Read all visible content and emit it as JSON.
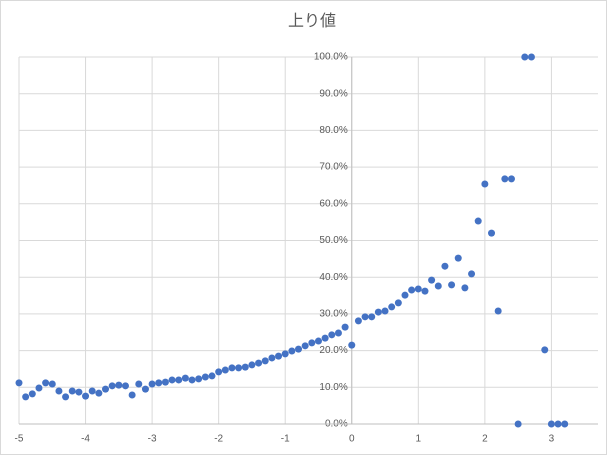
{
  "chart_data": {
    "type": "scatter",
    "title": "上り値",
    "x": [
      -5.0,
      -4.9,
      -4.8,
      -4.7,
      -4.6,
      -4.5,
      -4.4,
      -4.3,
      -4.2,
      -4.1,
      -4.0,
      -3.9,
      -3.8,
      -3.7,
      -3.6,
      -3.5,
      -3.4,
      -3.3,
      -3.2,
      -3.1,
      -3.0,
      -2.9,
      -2.8,
      -2.7,
      -2.6,
      -2.5,
      -2.4,
      -2.3,
      -2.2,
      -2.1,
      -2.0,
      -1.9,
      -1.8,
      -1.7,
      -1.6,
      -1.5,
      -1.4,
      -1.3,
      -1.2,
      -1.1,
      -1.0,
      -0.9,
      -0.8,
      -0.7,
      -0.6,
      -0.5,
      -0.4,
      -0.3,
      -0.2,
      -0.1,
      0.0,
      0.1,
      0.2,
      0.3,
      0.4,
      0.5,
      0.6,
      0.7,
      0.8,
      0.9,
      1.0,
      1.1,
      1.2,
      1.3,
      1.4,
      1.5,
      1.6,
      1.7,
      1.8,
      1.9,
      2.0,
      2.1,
      2.2,
      2.3,
      2.4,
      2.5,
      2.6,
      2.7,
      2.9,
      3.0,
      3.1,
      3.2
    ],
    "values": [
      11.2,
      7.4,
      8.2,
      9.8,
      11.2,
      10.9,
      9.0,
      7.4,
      9.0,
      8.7,
      7.6,
      9.0,
      8.4,
      9.5,
      10.4,
      10.6,
      10.4,
      7.9,
      10.9,
      9.5,
      10.9,
      11.2,
      11.4,
      12.0,
      12.0,
      12.5,
      12.0,
      12.3,
      12.8,
      13.1,
      14.2,
      14.7,
      15.3,
      15.3,
      15.5,
      16.1,
      16.6,
      17.2,
      18.0,
      18.5,
      19.1,
      19.9,
      20.4,
      21.3,
      22.1,
      22.6,
      23.4,
      24.3,
      24.8,
      26.4,
      21.5,
      28.1,
      29.2,
      29.2,
      30.5,
      30.8,
      31.9,
      33.0,
      35.1,
      36.5,
      36.8,
      36.2,
      39.2,
      37.6,
      43.0,
      37.9,
      45.2,
      37.1,
      40.9,
      55.3,
      65.4,
      52.0,
      30.8,
      66.8,
      66.8,
      0,
      100,
      100,
      20.2,
      0,
      0,
      0
    ],
    "color": "#4472c4",
    "xlim": [
      -5,
      3.7
    ],
    "xticks": [
      -5,
      -4,
      -3,
      -2,
      -1,
      0,
      1,
      2,
      3
    ],
    "ylim": [
      0,
      100
    ],
    "yticks": [
      {
        "value": 0,
        "label": "0.0%"
      },
      {
        "value": 10,
        "label": "10.0%"
      },
      {
        "value": 20,
        "label": "20.0%"
      },
      {
        "value": 30,
        "label": "30.0%"
      },
      {
        "value": 40,
        "label": "40.0%"
      },
      {
        "value": 50,
        "label": "50.0%"
      },
      {
        "value": 60,
        "label": "60.0%"
      },
      {
        "value": 70,
        "label": "70.0%"
      },
      {
        "value": 80,
        "label": "80.0%"
      },
      {
        "value": 90,
        "label": "90.0%"
      },
      {
        "value": 100,
        "label": "100.0%"
      }
    ],
    "grid": true
  }
}
